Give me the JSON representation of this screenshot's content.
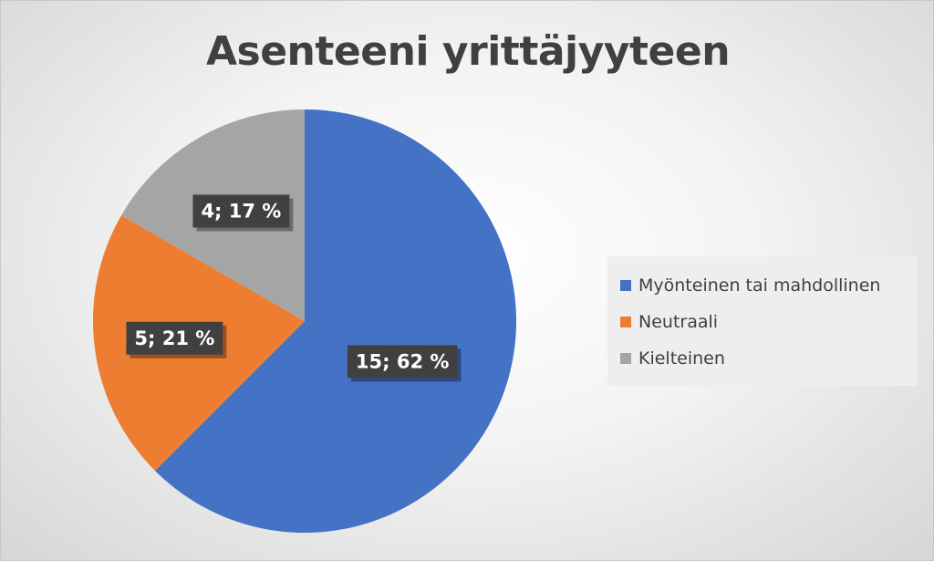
{
  "chart_data": {
    "type": "pie",
    "title": "Asenteeni yrittäjyyteen",
    "legend_position": "right",
    "slices": [
      {
        "name": "Myönteinen tai mahdollinen",
        "value": 15,
        "percent": 62,
        "label": "15; 62 %",
        "color": "#4472C4"
      },
      {
        "name": "Neutraali",
        "value": 5,
        "percent": 21,
        "label": "5; 21 %",
        "color": "#ED7D31"
      },
      {
        "name": "Kielteinen",
        "value": 4,
        "percent": 17,
        "label": "4; 17 %",
        "color": "#A5A5A5"
      }
    ]
  }
}
